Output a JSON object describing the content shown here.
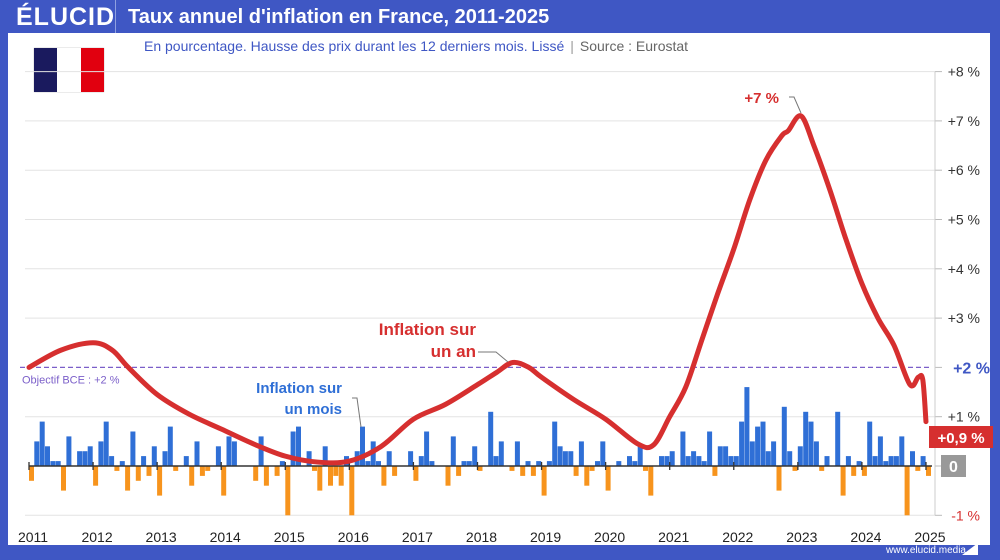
{
  "header": {
    "logo": "ÉLUCID",
    "title": "Taux annuel d'inflation en France, 2011-2025"
  },
  "subtitle": {
    "text": "En pourcentage. Hausse des prix durant les 12 derniers mois. Lissé",
    "separator": "|",
    "source": "Source : Eurostat"
  },
  "flag": {
    "colors": [
      "#1a1a5e",
      "#ffffff",
      "#e1000f"
    ]
  },
  "footer": {
    "url": "www.elucid.media"
  },
  "colors": {
    "frame": "#3f57c4",
    "annual_line": "#d62f2f",
    "positive_bar": "#2f6fd6",
    "negative_bar": "#f7941d",
    "target_line": "#7b5fc9"
  },
  "chart_data": {
    "type": "line+bar",
    "ylim": [
      -1,
      8
    ],
    "xlim": [
      2011,
      2025
    ],
    "grid": true,
    "y_ticks": [
      "-1 %",
      "0",
      "+1 %",
      "+2 %",
      "+3 %",
      "+4 %",
      "+5 %",
      "+6 %",
      "+7 %",
      "+8 %"
    ],
    "y_tick_values": [
      -1,
      0,
      1,
      2,
      3,
      4,
      5,
      6,
      7,
      8
    ],
    "x_ticks": [
      "2011",
      "2012",
      "2013",
      "2014",
      "2015",
      "2016",
      "2017",
      "2018",
      "2019",
      "2020",
      "2021",
      "2022",
      "2023",
      "2024",
      "2025"
    ],
    "target": {
      "value": 2,
      "label": "Objectif BCE : +2 %",
      "axis_label": "+2 %"
    },
    "annual": {
      "name": "Inflation sur un an",
      "name_lines": [
        "Inflation sur",
        "un an"
      ],
      "x": [
        2011.0,
        2011.5,
        2012.0,
        2012.3,
        2012.55,
        2013.0,
        2013.5,
        2014.0,
        2014.5,
        2015.0,
        2015.5,
        2016.0,
        2016.5,
        2017.0,
        2017.5,
        2018.0,
        2018.3,
        2018.55,
        2018.8,
        2019.0,
        2019.5,
        2020.0,
        2020.5,
        2020.75,
        2021.0,
        2021.25,
        2021.5,
        2021.75,
        2022.0,
        2022.25,
        2022.5,
        2022.75,
        2022.85,
        2023.05,
        2023.25,
        2023.5,
        2023.75,
        2024.0,
        2024.25,
        2024.5,
        2024.75,
        2024.88,
        2024.95,
        2025.0
      ],
      "y": [
        2.0,
        2.35,
        2.5,
        2.35,
        2.0,
        1.45,
        1.05,
        0.75,
        0.45,
        0.2,
        0.08,
        0.1,
        0.4,
        0.95,
        1.25,
        1.65,
        1.9,
        2.1,
        2.0,
        1.8,
        1.35,
        0.95,
        0.45,
        0.43,
        1.0,
        1.6,
        2.55,
        3.5,
        4.4,
        5.4,
        6.2,
        6.7,
        6.8,
        7.1,
        6.5,
        5.6,
        4.6,
        3.7,
        3.0,
        2.45,
        1.65,
        1.8,
        1.75,
        0.9
      ],
      "peak_label": "+7 %",
      "last_label": "+0,9 %"
    },
    "monthly": {
      "name": "Inflation sur un mois",
      "name_lines": [
        "Inflation sur",
        "un mois"
      ],
      "start": "2011-01",
      "zero_label": "0",
      "values": [
        -0.3,
        0.5,
        0.9,
        0.4,
        0.1,
        0.1,
        -0.5,
        0.6,
        0,
        0.3,
        0.3,
        0.4,
        -0.4,
        0.5,
        0.9,
        0.2,
        -0.1,
        0.1,
        -0.5,
        0.7,
        -0.3,
        0.2,
        -0.2,
        0.4,
        -0.6,
        0.3,
        0.8,
        -0.1,
        0,
        0.2,
        -0.4,
        0.5,
        -0.2,
        -0.1,
        0,
        0.4,
        -0.6,
        0.6,
        0.5,
        0,
        0,
        0,
        -0.3,
        0.6,
        -0.4,
        0,
        -0.2,
        0.1,
        -1.0,
        0.7,
        0.8,
        0,
        0.3,
        -0.1,
        -0.5,
        0.4,
        -0.4,
        -0.2,
        -0.4,
        0.2,
        -1.0,
        0.3,
        0.8,
        0.1,
        0.5,
        0.1,
        -0.4,
        0.3,
        -0.2,
        0,
        0,
        0.3,
        -0.3,
        0.2,
        0.7,
        0.1,
        0,
        0,
        -0.4,
        0.6,
        -0.2,
        0.1,
        0.1,
        0.4,
        -0.1,
        0,
        1.1,
        0.2,
        0.5,
        0,
        -0.1,
        0.5,
        -0.2,
        0.1,
        -0.2,
        0.1,
        -0.6,
        0.1,
        0.9,
        0.4,
        0.3,
        0.3,
        -0.2,
        0.5,
        -0.4,
        -0.1,
        0.1,
        0.5,
        -0.5,
        0,
        0.1,
        0,
        0.2,
        0.1,
        0.4,
        -0.1,
        -0.6,
        0,
        0.2,
        0.2,
        0.3,
        0,
        0.7,
        0.2,
        0.3,
        0.2,
        0.1,
        0.7,
        -0.2,
        0.4,
        0.4,
        0.2,
        0.2,
        0.9,
        1.6,
        0.5,
        0.8,
        0.9,
        0.3,
        0.5,
        -0.5,
        1.2,
        0.3,
        -0.1,
        0.4,
        1.1,
        0.9,
        0.5,
        -0.1,
        0.2,
        0,
        1.1,
        -0.6,
        0.2,
        -0.2,
        0.1,
        -0.2,
        0.9,
        0.2,
        0.6,
        0.1,
        0.2,
        0.2,
        0.6,
        -1.0,
        0.3,
        -0.1,
        0.2,
        -0.2
      ]
    }
  }
}
